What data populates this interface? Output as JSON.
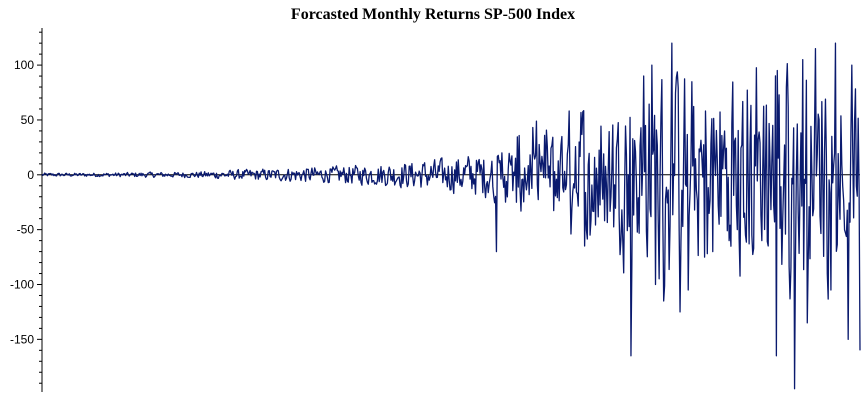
{
  "chart_data": {
    "type": "line",
    "title": "Forcasted Monthly Returns SP-500 Index",
    "xlabel": "",
    "ylabel": "",
    "ylim": [
      -198,
      132
    ],
    "y_ticks": [
      100,
      50,
      0,
      -50,
      -100,
      -150
    ],
    "y_tick_labels": [
      "100",
      "50",
      "0",
      "-50",
      "-100",
      "-150"
    ],
    "x_ticks": [],
    "grid": false,
    "series": [
      {
        "color": "#0a1a6e",
        "anchors": [
          [
            0,
            2
          ],
          [
            5,
            2
          ],
          [
            10,
            2.5
          ],
          [
            13,
            3
          ],
          [
            16,
            3
          ],
          [
            19,
            3.5
          ],
          [
            22,
            5
          ],
          [
            25,
            6
          ],
          [
            28,
            7
          ],
          [
            31,
            8
          ],
          [
            33,
            9
          ],
          [
            35,
            9
          ],
          [
            38,
            11
          ],
          [
            41,
            12
          ],
          [
            43,
            14
          ],
          [
            45,
            15
          ],
          [
            47,
            17
          ],
          [
            49,
            18
          ],
          [
            51,
            22
          ],
          [
            53,
            24
          ],
          [
            55,
            26
          ],
          [
            57,
            30
          ],
          [
            58,
            40
          ],
          [
            60,
            45
          ],
          [
            62,
            48
          ],
          [
            64,
            50
          ],
          [
            66,
            70
          ],
          [
            68,
            75
          ],
          [
            70,
            65
          ],
          [
            72,
            85
          ],
          [
            74,
            90
          ],
          [
            76,
            110
          ],
          [
            78,
            95
          ],
          [
            80,
            75
          ],
          [
            82,
            90
          ],
          [
            84,
            95
          ],
          [
            86,
            105
          ],
          [
            88,
            100
          ],
          [
            90,
            120
          ],
          [
            92,
            95
          ],
          [
            94,
            110
          ],
          [
            96,
            100
          ],
          [
            98,
            90
          ],
          [
            100,
            80
          ]
        ],
        "spikes": [
          [
            55.5,
            -70
          ],
          [
            58,
            -25
          ],
          [
            67,
            -55
          ],
          [
            71,
            -60
          ],
          [
            72,
            -165
          ],
          [
            73.5,
            90
          ],
          [
            74.5,
            100
          ],
          [
            75,
            -100
          ],
          [
            76,
            -115
          ],
          [
            77,
            120
          ],
          [
            78,
            -125
          ],
          [
            79,
            -105
          ],
          [
            81,
            -75
          ],
          [
            82,
            -70
          ],
          [
            84,
            -60
          ],
          [
            85,
            -50
          ],
          [
            86,
            -55
          ],
          [
            88,
            -60
          ],
          [
            89.8,
            -165
          ],
          [
            91,
            80
          ],
          [
            92,
            -195
          ],
          [
            93,
            105
          ],
          [
            93.5,
            -135
          ],
          [
            94.5,
            115
          ],
          [
            96,
            -90
          ],
          [
            97,
            120
          ],
          [
            98.5,
            -150
          ],
          [
            99,
            100
          ],
          [
            100,
            -160
          ]
        ]
      }
    ]
  }
}
